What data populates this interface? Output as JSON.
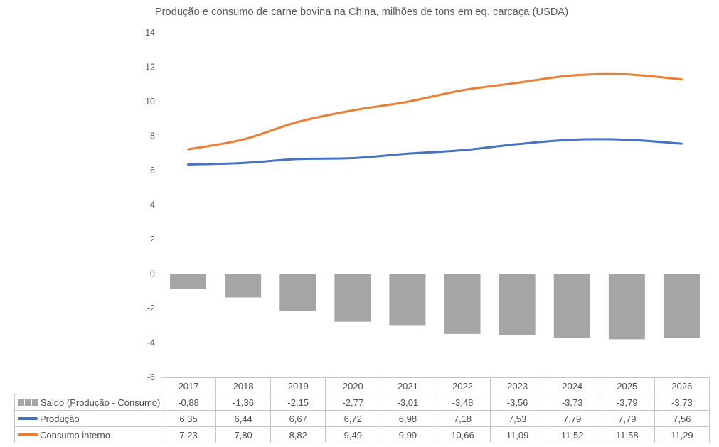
{
  "title": "Produção e consumo de carne bovina na China, milhões de tons em eq. carcaça (USDA)",
  "colors": {
    "production": "#4472C4",
    "consumption": "#ED7D31",
    "balance": "#A5A5A5",
    "axis_line": "#D9D9D9",
    "table_border": "#C6C6C6",
    "axis_text": "#595959"
  },
  "chart_data": {
    "type": "combo",
    "title": "Produção e consumo de carne bovina na China, milhões de tons em eq. carcaça (USDA)",
    "categories": [
      "2017",
      "2018",
      "2019",
      "2020",
      "2021",
      "2022",
      "2023",
      "2024",
      "2025",
      "2026"
    ],
    "series": [
      {
        "name": "Saldo (Produção - Consumo)",
        "type": "bar",
        "color": "#A5A5A5",
        "values": [
          -0.88,
          -1.36,
          -2.15,
          -2.77,
          -3.01,
          -3.48,
          -3.56,
          -3.73,
          -3.79,
          -3.73
        ]
      },
      {
        "name": "Produção",
        "type": "line",
        "smooth": true,
        "color": "#4472C4",
        "values": [
          6.35,
          6.44,
          6.67,
          6.72,
          6.98,
          7.18,
          7.53,
          7.79,
          7.79,
          7.56
        ]
      },
      {
        "name": "Consumo interno",
        "type": "line",
        "smooth": true,
        "color": "#ED7D31",
        "values": [
          7.23,
          7.8,
          8.82,
          9.49,
          9.99,
          10.66,
          11.09,
          11.52,
          11.58,
          11.29
        ]
      }
    ],
    "ylim": [
      -6,
      14
    ],
    "yticks": [
      14,
      12,
      10,
      8,
      6,
      4,
      2,
      0,
      -2,
      -4,
      -6
    ],
    "grid": false,
    "legend_position": "data-table-left-column",
    "decimal_separator": ","
  },
  "table": {
    "header": [
      "2017",
      "2018",
      "2019",
      "2020",
      "2021",
      "2022",
      "2023",
      "2024",
      "2025",
      "2026"
    ],
    "rows": [
      {
        "label": "Saldo (Produção - Consumo)",
        "swatch": "bar",
        "color": "#A5A5A5",
        "values": [
          "-0,88",
          "-1,36",
          "-2,15",
          "-2,77",
          "-3,01",
          "-3,48",
          "-3,56",
          "-3,73",
          "-3,79",
          "-3,73"
        ]
      },
      {
        "label": "Produção",
        "swatch": "line",
        "color": "#4472C4",
        "values": [
          "6,35",
          "6,44",
          "6,67",
          "6,72",
          "6,98",
          "7,18",
          "7,53",
          "7,79",
          "7,79",
          "7,56"
        ]
      },
      {
        "label": "Consumo interno",
        "swatch": "line",
        "color": "#ED7D31",
        "values": [
          "7,23",
          "7,80",
          "8,82",
          "9,49",
          "9,99",
          "10,66",
          "11,09",
          "11,52",
          "11,58",
          "11,29"
        ]
      }
    ]
  }
}
